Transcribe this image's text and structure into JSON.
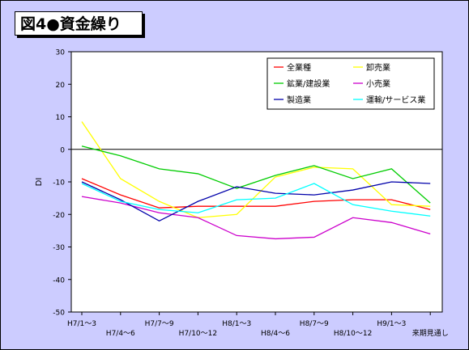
{
  "chart_data": {
    "type": "line",
    "title": "図4●資金繰り",
    "ylabel": "DI",
    "xlabel": "",
    "ylim": [
      -50,
      30
    ],
    "yticks": [
      30,
      20,
      10,
      0,
      -10,
      -20,
      -30,
      -40,
      -50
    ],
    "grid": false,
    "legend_position": "top-right",
    "categories": [
      "H7/1～3",
      "H7/4～6",
      "H7/7～9",
      "H7/10～12",
      "H8/1～3",
      "H8/4～6",
      "H8/7～9",
      "H8/10～12",
      "H9/1～3",
      "来期見通し"
    ],
    "series": [
      {
        "name": "全業種",
        "color": "#ff0000",
        "values": [
          -9,
          -14,
          -18,
          -17.5,
          -17.5,
          -17.5,
          -16,
          -15.5,
          -15.5,
          -18.5
        ]
      },
      {
        "name": "卸売業",
        "color": "#ffff00",
        "values": [
          8.5,
          -9,
          -16,
          -21,
          -20,
          -8.5,
          -5.5,
          -6,
          -17,
          -17.5
        ]
      },
      {
        "name": "鉱業/建設業",
        "color": "#00cc00",
        "values": [
          1,
          -2,
          -6,
          -7.5,
          -12,
          -8,
          -5,
          -9,
          -6,
          -16.5
        ]
      },
      {
        "name": "小売業",
        "color": "#cc00cc",
        "values": [
          -14.5,
          -16.5,
          -19.5,
          -21,
          -26.5,
          -27.5,
          -27,
          -21,
          -22.5,
          -26
        ]
      },
      {
        "name": "製造業",
        "color": "#0000aa",
        "values": [
          -10,
          -15.5,
          -22,
          -16,
          -11.5,
          -13.5,
          -14,
          -12.5,
          -10,
          -10.5
        ]
      },
      {
        "name": "運輸/サービス業",
        "color": "#00ffff",
        "values": [
          -10.5,
          -16,
          -18.5,
          -19.5,
          -15.5,
          -15,
          -10.5,
          -17,
          -19,
          -20.5
        ]
      }
    ]
  }
}
